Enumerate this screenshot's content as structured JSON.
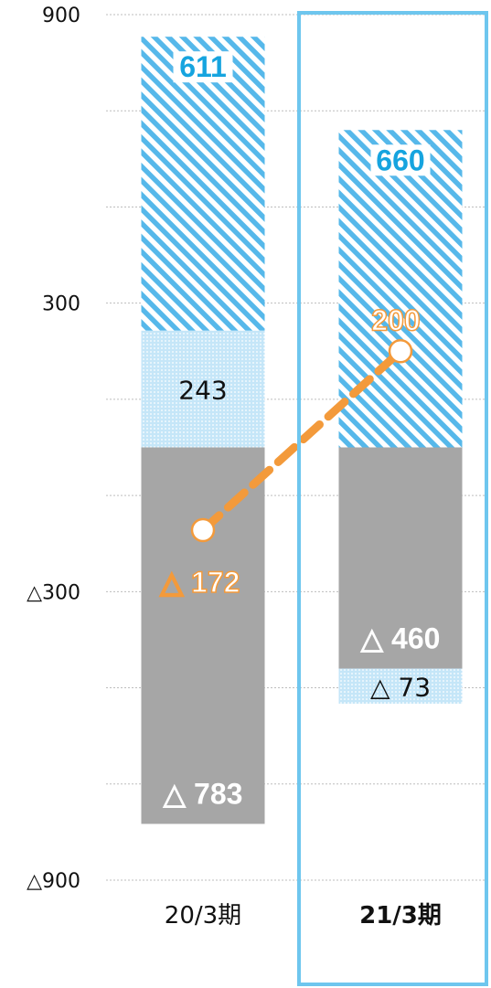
{
  "chart_data": {
    "type": "bar",
    "stacked": true,
    "categories": [
      "20/3期",
      "21/3期"
    ],
    "highlighted_category": "21/3期",
    "y_axis": {
      "min": -900,
      "max": 900,
      "gridlines": [
        900,
        700,
        500,
        300,
        100,
        -100,
        -300,
        -500,
        -700,
        -900
      ],
      "tick_labels": [
        {
          "value": 900,
          "text": "900"
        },
        {
          "value": 300,
          "text": "300"
        },
        {
          "value": -300,
          "text": "△300"
        },
        {
          "value": -900,
          "text": "△900"
        }
      ]
    },
    "series": [
      {
        "values": [
          -783,
          -460
        ],
        "labels": [
          "△ 783",
          "△ 460"
        ],
        "color": "#a6a6a6",
        "label_color": "#ffffff",
        "pattern": "solid"
      },
      {
        "values": [
          243,
          -73
        ],
        "labels": [
          "243",
          "△ 73"
        ],
        "color": "#bfe3f7",
        "label_color": "#111111",
        "pattern": "dotted"
      },
      {
        "values": [
          611,
          660
        ],
        "labels": [
          "611",
          "660"
        ],
        "color": "#56b8ea",
        "label_color": "#16a4df",
        "pattern": "diagonal"
      }
    ],
    "line_series": {
      "values": [
        -172,
        200
      ],
      "labels": [
        "△ 172",
        "200"
      ],
      "color": "#f39a3b",
      "style": "dashed"
    }
  }
}
